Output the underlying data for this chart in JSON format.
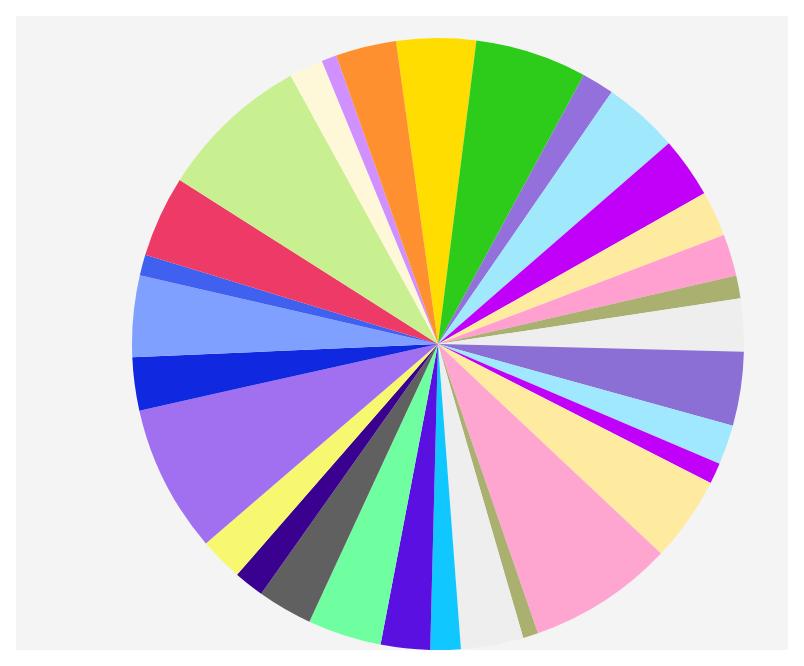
{
  "chart_data": {
    "type": "pie",
    "categories": [
      null,
      null,
      null,
      null,
      null,
      null,
      null,
      null,
      null,
      null,
      null,
      null,
      null,
      null,
      null,
      null,
      null,
      null,
      null,
      null,
      null,
      null,
      null,
      null,
      null,
      null,
      null,
      null,
      null,
      null,
      null
    ],
    "values": [
      4.2,
      5.9,
      1.7,
      4.0,
      3.2,
      2.4,
      2.2,
      1.2,
      2.8,
      3.9,
      2.1,
      1.1,
      4.5,
      7.7,
      0.8,
      3.3,
      1.6,
      2.6,
      3.9,
      2.9,
      1.6,
      2.3,
      7.8,
      2.8,
      4.3,
      1.1,
      4.3,
      8.0,
      1.8,
      0.8,
      3.2
    ],
    "colors": [
      "#ffdd00",
      "#2ecc1a",
      "#9370db",
      "#a0e8fc",
      "#c000f8",
      "#ffeba0",
      "#ffa0d0",
      "#aab070",
      "#eeeeee",
      "#8b6fd4",
      "#a0e8ff",
      "#c000f8",
      "#ffeba0",
      "#ffa6d0",
      "#aab070",
      "#eeeeee",
      "#10c8ff",
      "#5a10e0",
      "#70ffa0",
      "#606060",
      "#3a0090",
      "#f8f870",
      "#a070f0",
      "#1028e0",
      "#80a0ff",
      "#4060f0",
      "#ee3a66",
      "#c8f090",
      "#fff8d8",
      "#d090ff",
      "#ff9030"
    ]
  }
}
